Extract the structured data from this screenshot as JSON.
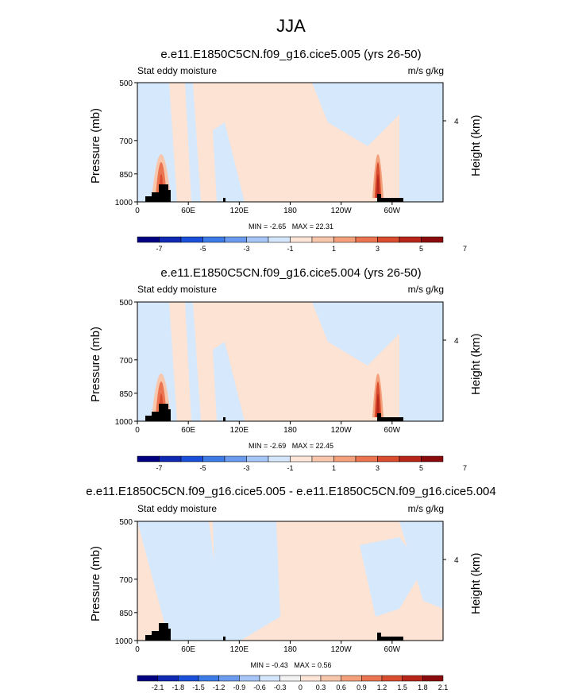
{
  "main_title": "JJA",
  "colors": {
    "full": [
      "#000080",
      "#0f29b3",
      "#1a4fd9",
      "#3d7be6",
      "#6a9bef",
      "#a5c6f7",
      "#d4e6fb",
      "#fde5d8",
      "#f8c6ab",
      "#f4a07b",
      "#ea7550",
      "#d94c2d",
      "#b8261a",
      "#8a0b0b"
    ],
    "diff": [
      "#000080",
      "#0f29b3",
      "#1a4fd9",
      "#3d7be6",
      "#6a9bef",
      "#a5c6f7",
      "#d4e6fb",
      "#f2f2f2",
      "#fde5d8",
      "#f8c6ab",
      "#f4a07b",
      "#ea7550",
      "#d94c2d",
      "#b8261a",
      "#8a0b0b"
    ],
    "background_pos": "#fde3d4",
    "background_neg": "#d6e8fc",
    "terrain": "#000000"
  },
  "chart_data": [
    {
      "type": "heatmap",
      "title": "e.e11.E1850C5CN.f09_g16.cice5.005 (yrs 26-50)",
      "left_label": "Stat eddy moisture",
      "units": "m/s g/kg",
      "ylabel": "Pressure (mb)",
      "ylabel_right": "Height (km)",
      "xlabel": "",
      "x_ticks": [
        "0",
        "60E",
        "120E",
        "180",
        "120W",
        "60W"
      ],
      "y_ticks": [
        "500",
        "700",
        "850",
        "1000"
      ],
      "y_ticks_right": [
        "4"
      ],
      "min_label": "MIN = -2.65",
      "max_label": "MAX = 22.31",
      "colorbar_labels": [
        "-7",
        "-5",
        "-3",
        "-1",
        "1",
        "3",
        "5",
        "7"
      ],
      "ylim": [
        1000,
        500
      ],
      "xlim": [
        0,
        360
      ]
    },
    {
      "type": "heatmap",
      "title": "e.e11.E1850C5CN.f09_g16.cice5.004 (yrs 26-50)",
      "left_label": "Stat eddy moisture",
      "units": "m/s g/kg",
      "ylabel": "Pressure (mb)",
      "ylabel_right": "Height (km)",
      "xlabel": "",
      "x_ticks": [
        "0",
        "60E",
        "120E",
        "180",
        "120W",
        "60W"
      ],
      "y_ticks": [
        "500",
        "700",
        "850",
        "1000"
      ],
      "y_ticks_right": [
        "4"
      ],
      "min_label": "MIN = -2.69",
      "max_label": "MAX = 22.45",
      "colorbar_labels": [
        "-7",
        "-5",
        "-3",
        "-1",
        "1",
        "3",
        "5",
        "7"
      ],
      "ylim": [
        1000,
        500
      ],
      "xlim": [
        0,
        360
      ]
    },
    {
      "type": "heatmap",
      "title": "e.e11.E1850C5CN.f09_g16.cice5.005 - e.e11.E1850C5CN.f09_g16.cice5.004",
      "left_label": "Stat eddy moisture",
      "units": "m/s g/kg",
      "ylabel": "Pressure (mb)",
      "ylabel_right": "Height (km)",
      "xlabel": "",
      "x_ticks": [
        "0",
        "60E",
        "120E",
        "180",
        "120W",
        "60W"
      ],
      "y_ticks": [
        "500",
        "700",
        "850",
        "1000"
      ],
      "y_ticks_right": [
        "4"
      ],
      "min_label": "MIN = -0.43",
      "max_label": "MAX = 0.56",
      "colorbar_labels": [
        "-2.1",
        "-1.8",
        "-1.5",
        "-1.2",
        "-0.9",
        "-0.6",
        "-0.3",
        "0",
        "0.3",
        "0.6",
        "0.9",
        "1.2",
        "1.5",
        "1.8",
        "2.1"
      ],
      "ylim": [
        1000,
        500
      ],
      "xlim": [
        0,
        360
      ]
    }
  ]
}
